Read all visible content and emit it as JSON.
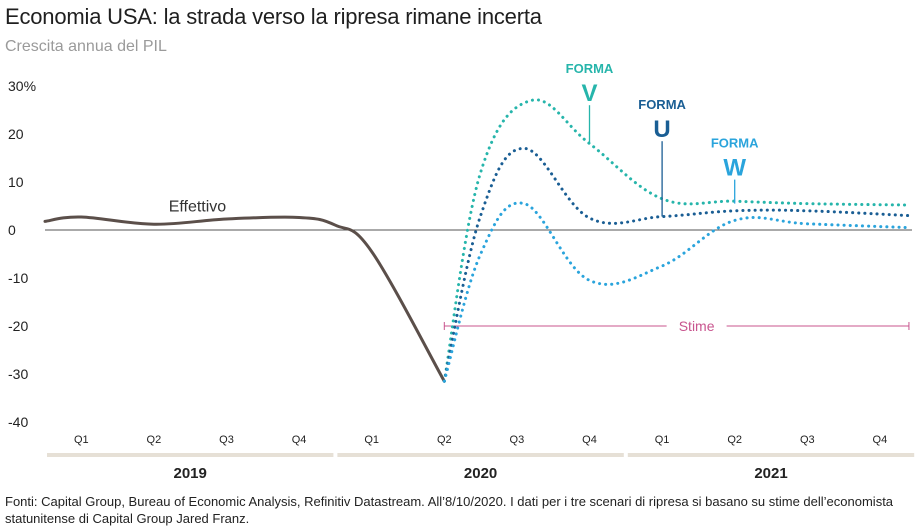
{
  "chart_data": {
    "type": "line",
    "title": "Economia USA: la strada verso la ripresa rimane incerta",
    "subtitle": "Crescita annua del PIL",
    "y_unit_label": "%",
    "ylim": [
      -40,
      30
    ],
    "yticks": [
      30,
      20,
      10,
      0,
      -10,
      -20,
      -30,
      -40
    ],
    "ytick_labels": [
      "30%",
      "20",
      "10",
      "0",
      "-10",
      "-20",
      "-30",
      "-40"
    ],
    "quarters": [
      "Q1",
      "Q2",
      "Q3",
      "Q4",
      "Q1",
      "Q2",
      "Q3",
      "Q4",
      "Q1",
      "Q2",
      "Q3",
      "Q4"
    ],
    "years": [
      {
        "label": "2019",
        "start": 0,
        "end": 3
      },
      {
        "label": "2020",
        "start": 4,
        "end": 7
      },
      {
        "label": "2021",
        "start": 8,
        "end": 11
      }
    ],
    "series": [
      {
        "name": "Effettivo",
        "label": "Effettivo",
        "style": "solid",
        "color": "#5b4f4a",
        "x": [
          -0.5,
          0,
          1,
          2,
          3,
          3.5,
          4,
          5
        ],
        "y": [
          1.8,
          2.7,
          1.2,
          2.3,
          2.6,
          1.0,
          -4.5,
          -31.5
        ]
      },
      {
        "name": "V",
        "prefix": "FORMA",
        "letter": "V",
        "style": "dotted",
        "color": "#26b5ab",
        "x": [
          5,
          5.5,
          6.2,
          7,
          8,
          9,
          10,
          11.4
        ],
        "y": [
          -31.5,
          12,
          27,
          18,
          6.5,
          6.0,
          5.5,
          5.2
        ]
      },
      {
        "name": "U",
        "prefix": "FORMA",
        "letter": "U",
        "style": "dotted",
        "color": "#1a5e94",
        "x": [
          5,
          5.5,
          6.1,
          7,
          8,
          9,
          10,
          11.4
        ],
        "y": [
          -31.5,
          3,
          17,
          2.5,
          2.8,
          4.0,
          4.0,
          3.0
        ]
      },
      {
        "name": "W",
        "prefix": "FORMA",
        "letter": "W",
        "style": "dotted",
        "color": "#2aa4dc",
        "x": [
          5,
          5.5,
          6.1,
          7,
          8,
          9,
          10,
          11.4
        ],
        "y": [
          -31.5,
          -5,
          5.5,
          -10.5,
          -7.5,
          2.0,
          1.3,
          0.5
        ]
      }
    ],
    "estimate_range": {
      "label": "Stime",
      "color": "#c8548e",
      "y": -20,
      "x_start": 5,
      "x_end": 11.4
    },
    "callouts": [
      {
        "series": "V",
        "x": 7.0,
        "y": 18
      },
      {
        "series": "U",
        "x": 8.0,
        "y": 2.8
      },
      {
        "series": "W",
        "x": 9.0,
        "y": 5.5
      }
    ]
  },
  "source": "Fonti: Capital Group, Bureau of Economic Analysis, Refinitiv Datastream. All’8/10/2020. I dati per i tre scenari di ripresa si basano su stime dell’economista statunitense di Capital Group Jared Franz."
}
